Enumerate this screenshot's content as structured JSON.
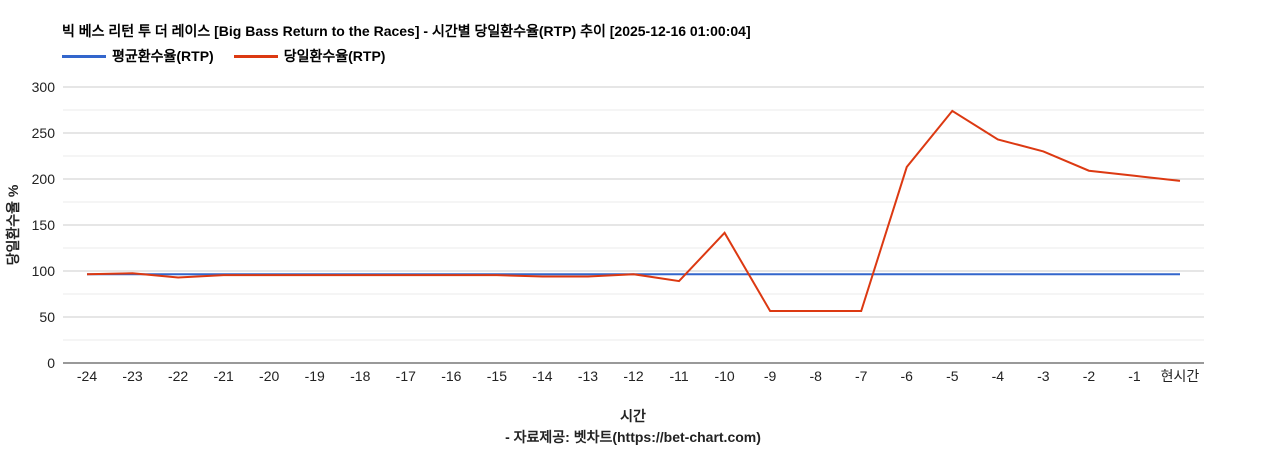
{
  "chart_data": {
    "type": "line",
    "title": "빅 베스 리턴 투 더 레이스 [Big Bass Return to the Races] - 시간별 당일환수율(RTP) 추이 [2025-12-16 01:00:04]",
    "xlabel": "시간",
    "ylabel": "당일환수율 %",
    "source_note": "- 자료제공: 벳차트(https://bet-chart.com)",
    "categories": [
      "-24",
      "-23",
      "-22",
      "-21",
      "-20",
      "-19",
      "-18",
      "-17",
      "-16",
      "-15",
      "-14",
      "-13",
      "-12",
      "-11",
      "-10",
      "-9",
      "-8",
      "-7",
      "-6",
      "-5",
      "-4",
      "-3",
      "-2",
      "-1",
      "현시간"
    ],
    "ylim": [
      0,
      300
    ],
    "yticks": [
      0,
      50,
      100,
      150,
      200,
      250,
      300
    ],
    "grid": true,
    "legend_position": "top-left",
    "series": [
      {
        "name": "평균환수율(RTP)",
        "color": "#3366cc",
        "values": [
          96.5,
          96.5,
          96.5,
          96.5,
          96.5,
          96.5,
          96.5,
          96.5,
          96.5,
          96.5,
          96.5,
          96.5,
          96.5,
          96.5,
          96.5,
          96.5,
          96.5,
          96.5,
          96.5,
          96.5,
          96.5,
          96.5,
          96.5,
          96.5,
          96.5
        ]
      },
      {
        "name": "당일환수율(RTP)",
        "color": "#dc3912",
        "values": [
          96.5,
          97.5,
          93,
          95.5,
          95.5,
          95.5,
          95.5,
          95.5,
          95.5,
          95.5,
          94,
          94,
          96.5,
          89,
          141.5,
          56.5,
          56.5,
          56.5,
          213,
          274,
          243,
          230,
          209,
          203.5,
          198
        ]
      }
    ]
  }
}
